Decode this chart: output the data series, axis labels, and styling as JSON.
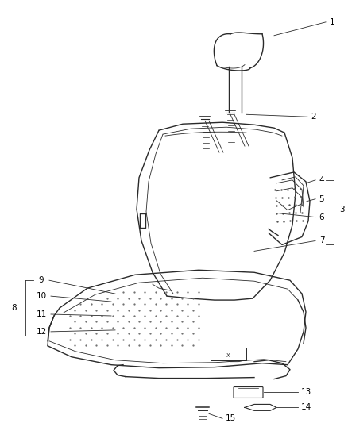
{
  "background_color": "#ffffff",
  "line_color": "#2a2a2a",
  "label_color": "#000000",
  "fig_width": 4.39,
  "fig_height": 5.33,
  "dpi": 100,
  "label_fontsize": 7.5
}
